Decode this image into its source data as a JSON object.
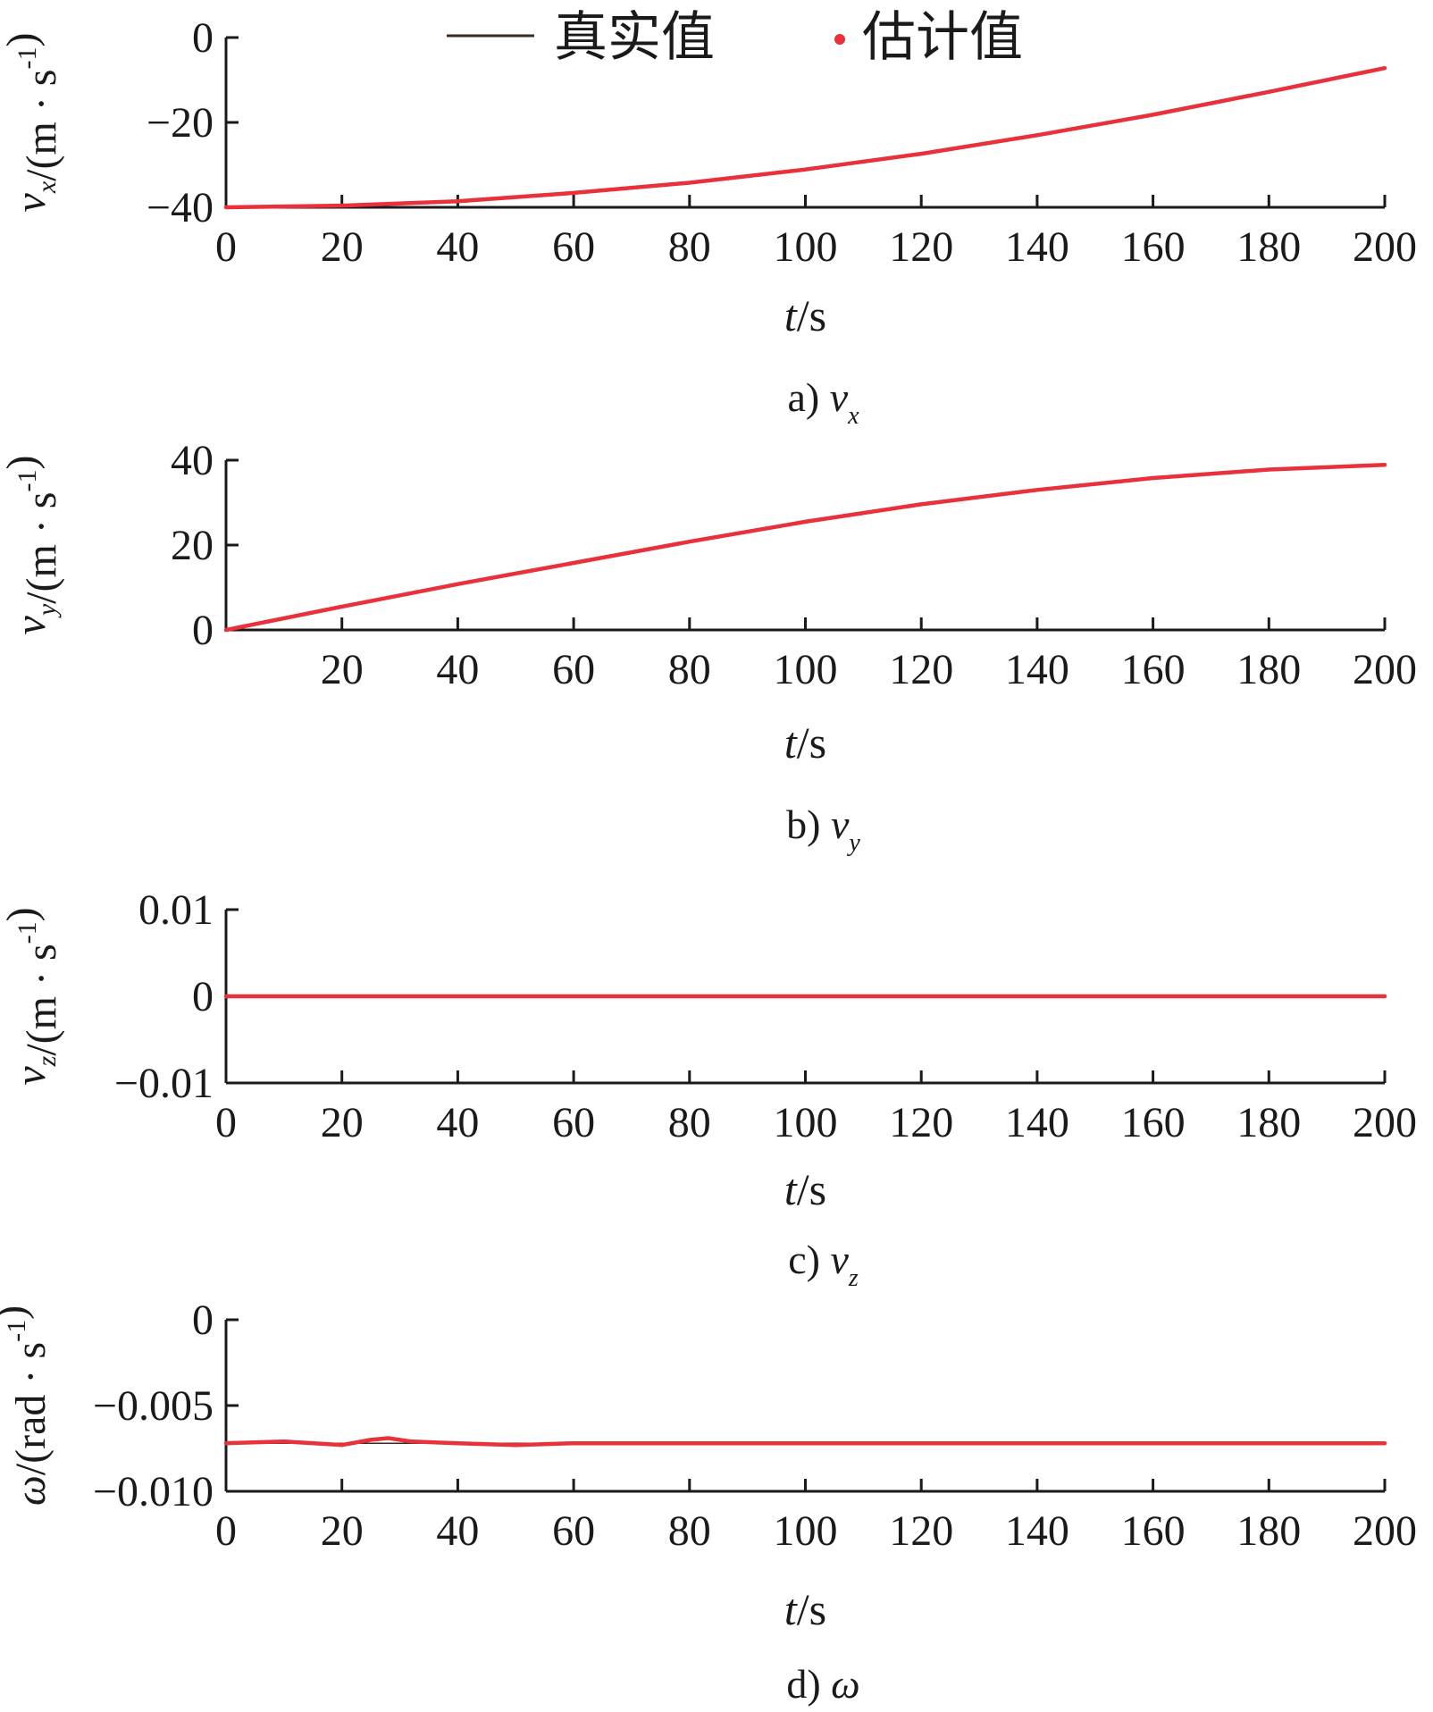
{
  "colors": {
    "true_value": "#3a2a20",
    "estimate": "#e8313a",
    "axis": "#1a1a1a"
  },
  "legend": {
    "true_label": "真实值",
    "estimate_label": "估计值",
    "placement": "top-center"
  },
  "chart_data": [
    {
      "type": "line",
      "panel_caption": "a) v",
      "panel_caption_sub": "x",
      "ylabel": {
        "var": "v",
        "sub": "x",
        "unit": "/(m · s",
        "sup": "-1",
        "close": ")"
      },
      "xlabel": {
        "var": "t",
        "unit": "/s"
      },
      "xlim": [
        0,
        200
      ],
      "ylim": [
        -40,
        0
      ],
      "x_ticks": [
        0,
        20,
        40,
        60,
        80,
        100,
        120,
        140,
        160,
        180,
        200
      ],
      "x_tick_labels": [
        "0",
        "20",
        "40",
        "60",
        "80",
        "100",
        "120",
        "140",
        "160",
        "180",
        "200"
      ],
      "y_ticks": [
        -40,
        -20,
        0
      ],
      "y_tick_labels": [
        "−40",
        "−20",
        "0"
      ],
      "grid": false,
      "series": [
        {
          "name": "真实值",
          "x": [
            0,
            20,
            40,
            60,
            80,
            100,
            120,
            140,
            160,
            180,
            200
          ],
          "y": [
            -40,
            -39.6,
            -38.6,
            -36.6,
            -34.2,
            -31.1,
            -27.4,
            -23.0,
            -18.2,
            -12.8,
            -7.2
          ]
        },
        {
          "name": "估计值",
          "x": [
            0,
            20,
            40,
            60,
            80,
            100,
            120,
            140,
            160,
            180,
            200
          ],
          "y": [
            -40,
            -39.6,
            -38.6,
            -36.6,
            -34.2,
            -31.1,
            -27.4,
            -23.0,
            -18.2,
            -12.8,
            -7.2
          ]
        }
      ]
    },
    {
      "type": "line",
      "panel_caption": "b) v",
      "panel_caption_sub": "y",
      "ylabel": {
        "var": "v",
        "sub": "y",
        "unit": "/(m · s",
        "sup": "-1",
        "close": ")"
      },
      "xlabel": {
        "var": "t",
        "unit": "/s"
      },
      "xlim": [
        0,
        200
      ],
      "ylim": [
        0,
        40
      ],
      "x_ticks": [
        20,
        40,
        60,
        80,
        100,
        120,
        140,
        160,
        180,
        200
      ],
      "x_tick_labels": [
        "20",
        "40",
        "60",
        "80",
        "100",
        "120",
        "140",
        "160",
        "180",
        "200"
      ],
      "y_ticks": [
        0,
        20,
        40
      ],
      "y_tick_labels": [
        "0",
        "20",
        "40"
      ],
      "grid": false,
      "series": [
        {
          "name": "真实值",
          "x": [
            0,
            20,
            40,
            60,
            80,
            100,
            120,
            140,
            160,
            180,
            200
          ],
          "y": [
            0,
            5.5,
            10.8,
            15.8,
            20.8,
            25.5,
            29.6,
            33.0,
            35.8,
            37.8,
            38.9
          ]
        },
        {
          "name": "估计值",
          "x": [
            0,
            20,
            40,
            60,
            80,
            100,
            120,
            140,
            160,
            180,
            200
          ],
          "y": [
            0,
            5.5,
            10.8,
            15.8,
            20.8,
            25.5,
            29.6,
            33.0,
            35.8,
            37.8,
            38.9
          ]
        }
      ]
    },
    {
      "type": "line",
      "panel_caption": "c) v",
      "panel_caption_sub": "z",
      "ylabel": {
        "var": "v",
        "sub": "z",
        "unit": "/(m · s",
        "sup": "-1",
        "close": ")"
      },
      "xlabel": {
        "var": "t",
        "unit": "/s"
      },
      "xlim": [
        0,
        200
      ],
      "ylim": [
        -0.01,
        0.01
      ],
      "x_ticks": [
        0,
        20,
        40,
        60,
        80,
        100,
        120,
        140,
        160,
        180,
        200
      ],
      "x_tick_labels": [
        "0",
        "20",
        "40",
        "60",
        "80",
        "100",
        "120",
        "140",
        "160",
        "180",
        "200"
      ],
      "y_ticks": [
        -0.01,
        0,
        0.01
      ],
      "y_tick_labels": [
        "−0.01",
        "0",
        "0.01"
      ],
      "grid": false,
      "series": [
        {
          "name": "真实值",
          "x": [
            0,
            200
          ],
          "y": [
            0,
            0
          ]
        },
        {
          "name": "估计值",
          "x": [
            0,
            200
          ],
          "y": [
            0,
            0
          ]
        }
      ]
    },
    {
      "type": "line",
      "panel_caption": "d) ω",
      "panel_caption_sub": "",
      "ylabel": {
        "var": "ω",
        "sub": "",
        "unit": "/(rad · s",
        "sup": "-1",
        "close": ")"
      },
      "xlabel": {
        "var": "t",
        "unit": "/s"
      },
      "xlim": [
        0,
        200
      ],
      "ylim": [
        -0.01,
        0
      ],
      "x_ticks": [
        0,
        20,
        40,
        60,
        80,
        100,
        120,
        140,
        160,
        180,
        200
      ],
      "x_tick_labels": [
        "0",
        "20",
        "40",
        "60",
        "80",
        "100",
        "120",
        "140",
        "160",
        "180",
        "200"
      ],
      "y_ticks": [
        -0.01,
        -0.005,
        0
      ],
      "y_tick_labels": [
        "−0.010",
        "−0.005",
        "0"
      ],
      "grid": false,
      "series": [
        {
          "name": "真实值",
          "x": [
            0,
            200
          ],
          "y": [
            -0.0072,
            -0.0072
          ]
        },
        {
          "name": "估计值",
          "x": [
            0,
            10,
            20,
            25,
            28,
            32,
            40,
            50,
            60,
            80,
            100,
            140,
            200
          ],
          "y": [
            -0.0072,
            -0.0071,
            -0.0073,
            -0.007,
            -0.0069,
            -0.0071,
            -0.0072,
            -0.0073,
            -0.0072,
            -0.0072,
            -0.0072,
            -0.0072,
            -0.0072
          ]
        }
      ]
    }
  ]
}
